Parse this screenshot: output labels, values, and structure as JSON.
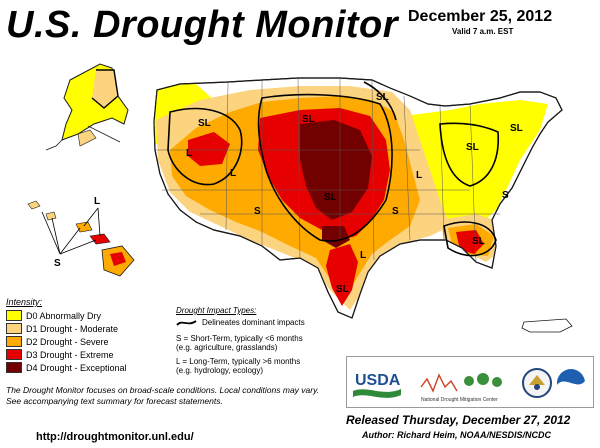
{
  "header": {
    "title": "U.S. Drought Monitor",
    "date": "December 25, 2012",
    "valid": "Valid 7 a.m. EST"
  },
  "legend": {
    "title": "Intensity:",
    "items": [
      {
        "label": "D0 Abnormally Dry",
        "color": "#ffff00"
      },
      {
        "label": "D1 Drought - Moderate",
        "color": "#fcd37f"
      },
      {
        "label": "D2 Drought - Severe",
        "color": "#ffaa00"
      },
      {
        "label": "D3 Drought - Extreme",
        "color": "#e60000"
      },
      {
        "label": "D4 Drought - Exceptional",
        "color": "#730000"
      }
    ]
  },
  "impact": {
    "title": "Drought Impact Types:",
    "boundary": "Delineates dominant impacts",
    "short_term_1": "S = Short-Term, typically <6 months",
    "short_term_2": "(e.g. agriculture, grasslands)",
    "long_term_1": "L = Long-Term, typically >6 months",
    "long_term_2": "(e.g. hydrology, ecology)"
  },
  "map_labels": {
    "sl": "SL",
    "l": "L",
    "s": "S"
  },
  "note": "The Drought Monitor focuses on broad-scale conditions. Local conditions may vary. See accompanying text summary for forecast statements.",
  "url": "http://droughtmonitor.unl.edu/",
  "released": "Released Thursday, December 27, 2012",
  "author": "Author: Richard Heim, NOAA/NESDIS/NCDC",
  "logos": {
    "usda": "USDA",
    "ndmc": "National Drought Mitigation Center"
  }
}
